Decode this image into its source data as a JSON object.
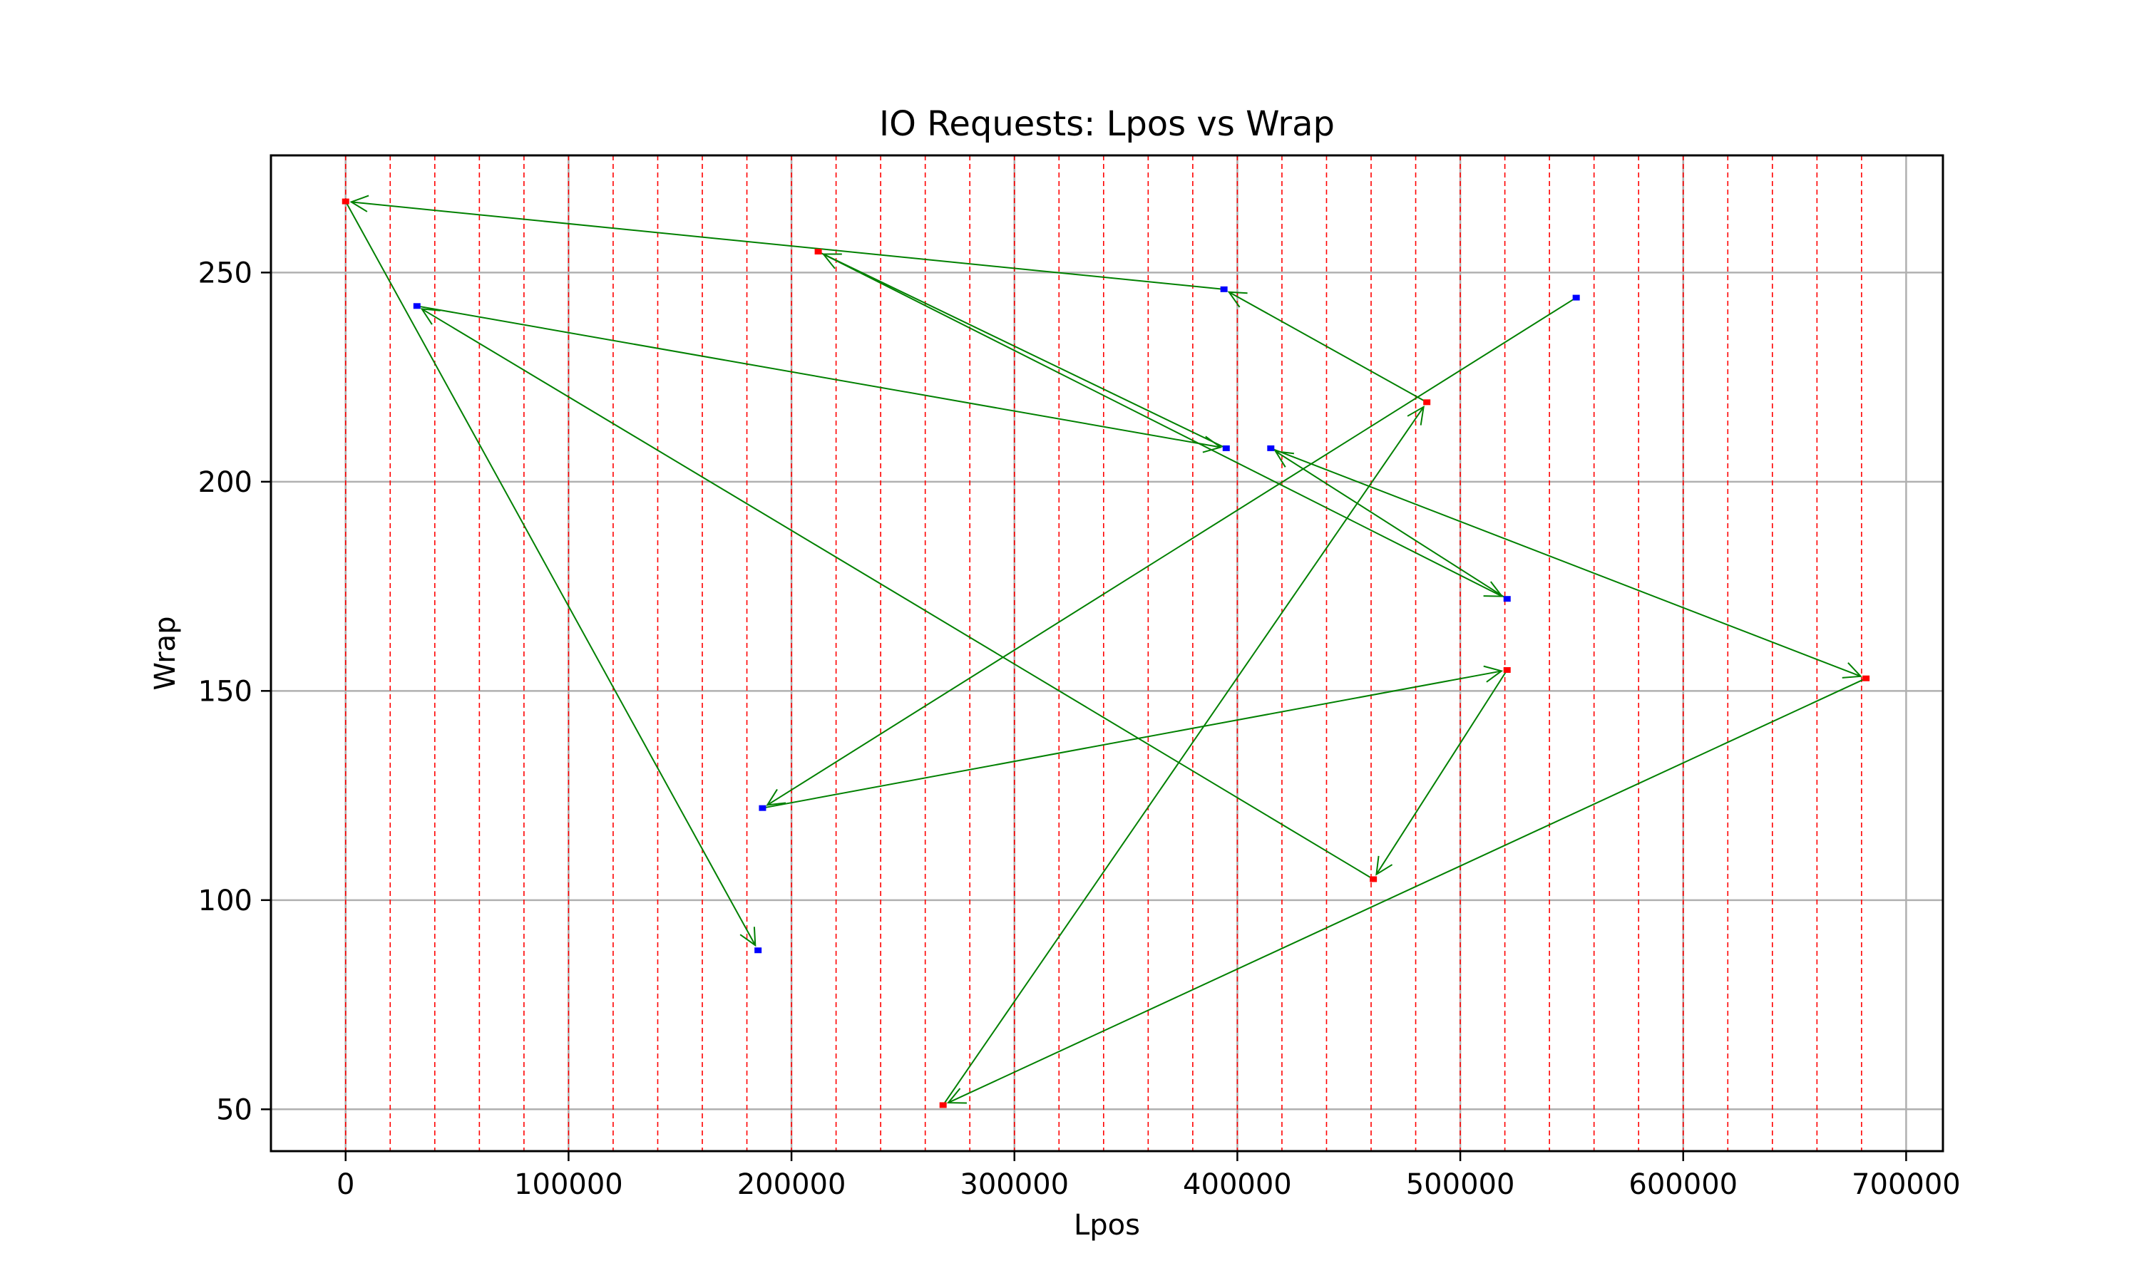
{
  "chart_data": {
    "type": "scatter",
    "title": "IO Requests: Lpos vs Wrap",
    "xlabel": "Lpos",
    "ylabel": "Wrap",
    "xlim": [
      -33500,
      716500
    ],
    "ylim": [
      40,
      278
    ],
    "xticks": [
      0,
      100000,
      200000,
      300000,
      400000,
      500000,
      600000,
      700000
    ],
    "xtick_labels": [
      "0",
      "100000",
      "200000",
      "300000",
      "400000",
      "500000",
      "600000",
      "700000"
    ],
    "yticks": [
      50,
      100,
      150,
      200,
      250
    ],
    "ytick_labels": [
      "50",
      "100",
      "150",
      "200",
      "250"
    ],
    "grid": true,
    "vertical_markers": {
      "color": "#ff0000",
      "style": "dashed",
      "step": 20000,
      "x": [
        0,
        20000,
        40000,
        60000,
        80000,
        100000,
        120000,
        140000,
        160000,
        180000,
        200000,
        220000,
        240000,
        260000,
        280000,
        300000,
        320000,
        340000,
        360000,
        380000,
        400000,
        420000,
        440000,
        460000,
        480000,
        500000,
        520000,
        540000,
        560000,
        580000,
        600000,
        620000,
        640000,
        660000,
        680000
      ]
    },
    "series": [
      {
        "color": "#0000ff",
        "points": [
          {
            "x": 552000,
            "y": 244
          },
          {
            "x": 187000,
            "y": 122
          },
          {
            "x": 521000,
            "y": 172
          },
          {
            "x": 415000,
            "y": 208
          },
          {
            "x": 395000,
            "y": 208
          },
          {
            "x": 32000,
            "y": 242
          },
          {
            "x": 394000,
            "y": 246
          },
          {
            "x": 185000,
            "y": 88
          }
        ]
      },
      {
        "color": "#ff0000",
        "points": [
          {
            "x": 485000,
            "y": 219
          },
          {
            "x": 268000,
            "y": 51
          },
          {
            "x": 682000,
            "y": 153
          },
          {
            "x": 521000,
            "y": 155
          },
          {
            "x": 461000,
            "y": 105
          },
          {
            "x": 212000,
            "y": 255
          },
          {
            "x": 0,
            "y": 267
          }
        ]
      }
    ],
    "path_color": "#008000",
    "path": [
      {
        "x": 552000,
        "y": 244
      },
      {
        "x": 187000,
        "y": 122
      },
      {
        "x": 521000,
        "y": 155
      },
      {
        "x": 461000,
        "y": 105
      },
      {
        "x": 32000,
        "y": 242
      },
      {
        "x": 395000,
        "y": 208
      },
      {
        "x": 212000,
        "y": 255
      },
      {
        "x": 521000,
        "y": 172
      },
      {
        "x": 415000,
        "y": 208
      },
      {
        "x": 682000,
        "y": 153
      },
      {
        "x": 268000,
        "y": 51
      },
      {
        "x": 485000,
        "y": 219
      },
      {
        "x": 394000,
        "y": 246
      },
      {
        "x": 0,
        "y": 267
      },
      {
        "x": 185000,
        "y": 88
      }
    ]
  }
}
